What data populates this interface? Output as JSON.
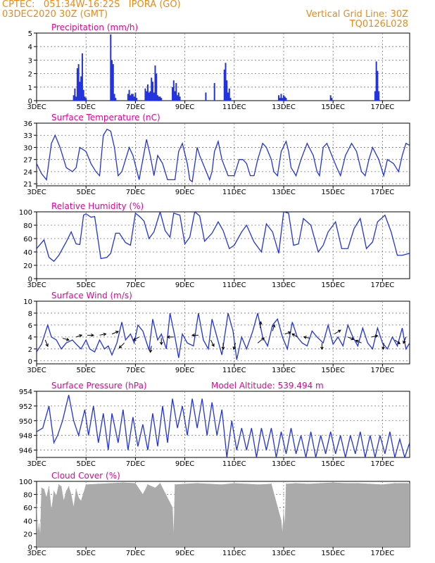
{
  "header": {
    "station_line": "CPTEC:   051:34W-16:22S   IPORA (GO)",
    "date_line": "03DEC2020 30Z (GMT)",
    "grid_note": "Vertical Grid Line: 30Z",
    "model_code": "TQ0126L028"
  },
  "colors": {
    "header": "#e88a1a",
    "title": "#e6009a",
    "line": "#2233dd",
    "cloud": "#aaaaaa",
    "arrow": "#000000"
  },
  "x_axis": {
    "tick_labels": [
      "3DEC",
      "5DEC",
      "7DEC",
      "9DEC",
      "11DEC",
      "13DEC",
      "15DEC",
      "17DEC"
    ],
    "tick_days": [
      3,
      5,
      7,
      9,
      11,
      13,
      15,
      17
    ],
    "range_days": [
      3,
      18.1
    ]
  },
  "chart_data": [
    {
      "id": "precip",
      "type": "bar",
      "title": "Precipitation (mm/h)",
      "ylim": [
        0,
        5
      ],
      "yticks": [
        0,
        1,
        2,
        3,
        4,
        5
      ],
      "grid": true,
      "x": [
        4.5,
        4.55,
        4.6,
        4.65,
        4.7,
        4.75,
        4.8,
        4.85,
        4.9,
        4.95,
        5.0,
        6.0,
        6.05,
        6.1,
        6.15,
        6.2,
        6.7,
        6.75,
        6.8,
        6.85,
        6.9,
        6.95,
        7.0,
        7.05,
        7.4,
        7.45,
        7.5,
        7.55,
        7.6,
        7.65,
        7.7,
        7.75,
        7.8,
        7.85,
        7.9,
        7.95,
        8.0,
        8.05,
        8.5,
        8.55,
        8.6,
        8.65,
        8.7,
        8.75,
        8.8,
        9.85,
        10.2,
        10.6,
        10.65,
        10.7,
        10.75,
        10.8,
        10.85,
        12.8,
        12.85,
        12.9,
        12.95,
        13.0,
        13.05,
        13.1,
        14.9,
        14.95,
        16.7,
        16.75,
        16.8,
        16.85
      ],
      "values": [
        0.4,
        0.9,
        0.3,
        2.4,
        2.7,
        1.4,
        1.8,
        3.5,
        0.8,
        0.3,
        0.2,
        4.9,
        3.0,
        2.7,
        0.5,
        0.2,
        0.5,
        0.8,
        0.4,
        0.5,
        0.5,
        0.3,
        0.6,
        0.2,
        0.9,
        0.7,
        1.2,
        0.6,
        0.7,
        1.7,
        1.4,
        0.6,
        2.6,
        2.0,
        0.4,
        0.3,
        0.3,
        0.2,
        1.0,
        1.5,
        0.7,
        1.3,
        0.4,
        0.6,
        0.3,
        0.6,
        1.3,
        2.3,
        2.8,
        1.5,
        0.6,
        0.9,
        0.2,
        0.4,
        0.2,
        0.5,
        0.2,
        0.4,
        0.3,
        0.2,
        0.4,
        0.2,
        0.7,
        2.9,
        2.2,
        0.7
      ]
    },
    {
      "id": "temp",
      "type": "line",
      "title": "Surface Temperature (nC)",
      "ylim": [
        20.5,
        36
      ],
      "yticks": [
        21,
        24,
        27,
        30,
        33,
        36
      ],
      "grid": true,
      "x": [
        3.0,
        3.2,
        3.4,
        3.6,
        3.75,
        3.95,
        4.2,
        4.45,
        4.6,
        4.75,
        5.0,
        5.2,
        5.4,
        5.55,
        5.7,
        5.85,
        6.0,
        6.15,
        6.3,
        6.45,
        6.6,
        6.75,
        6.9,
        7.15,
        7.3,
        7.45,
        7.6,
        7.75,
        7.9,
        8.1,
        8.3,
        8.6,
        8.75,
        8.9,
        9.1,
        9.2,
        9.3,
        9.5,
        9.6,
        9.8,
        10.0,
        10.1,
        10.2,
        10.35,
        10.5,
        10.75,
        11.0,
        11.2,
        11.35,
        11.5,
        11.65,
        11.8,
        11.95,
        12.15,
        12.3,
        12.5,
        12.6,
        12.75,
        12.9,
        13.1,
        13.2,
        13.3,
        13.5,
        13.7,
        13.95,
        14.2,
        14.35,
        14.45,
        14.6,
        14.75,
        14.95,
        15.15,
        15.3,
        15.5,
        15.75,
        15.95,
        16.15,
        16.3,
        16.45,
        16.6,
        16.85,
        17.05,
        17.2,
        17.45,
        17.65,
        17.8,
        17.95,
        18.1
      ],
      "values": [
        26,
        23.5,
        22,
        31,
        33,
        30,
        25,
        24,
        25,
        30,
        29,
        26,
        24,
        23,
        33,
        34.5,
        34,
        30,
        23,
        24,
        27,
        30,
        28,
        22,
        27,
        32,
        28,
        23,
        28,
        26,
        22,
        22,
        29,
        31,
        26,
        22,
        21.5,
        30,
        28,
        25,
        22,
        24,
        29,
        31.5,
        27,
        23,
        23,
        27,
        27,
        26,
        23,
        23,
        27,
        31,
        30,
        27,
        24,
        23,
        29,
        31.5,
        29,
        25,
        23,
        27,
        31,
        28,
        24,
        23,
        30,
        31,
        28,
        25,
        23,
        28,
        31,
        29,
        24,
        23,
        27,
        30,
        27,
        23,
        27,
        26,
        24,
        28,
        31,
        30.5
      ]
    },
    {
      "id": "rh",
      "type": "line",
      "title": "Relative Humidity (%)",
      "ylim": [
        0,
        100
      ],
      "yticks": [
        0,
        20,
        40,
        60,
        80,
        100
      ],
      "grid": true,
      "x": [
        3.0,
        3.3,
        3.5,
        3.7,
        3.9,
        4.2,
        4.4,
        4.6,
        4.75,
        4.9,
        5.0,
        5.2,
        5.35,
        5.6,
        5.85,
        6.0,
        6.2,
        6.35,
        6.6,
        6.8,
        7.0,
        7.2,
        7.35,
        7.55,
        7.75,
        8.0,
        8.2,
        8.4,
        8.55,
        8.8,
        9.0,
        9.2,
        9.4,
        9.6,
        9.8,
        10.1,
        10.35,
        10.55,
        10.8,
        11.0,
        11.3,
        11.5,
        11.8,
        12.1,
        12.3,
        12.55,
        12.8,
        13.0,
        13.2,
        13.4,
        13.6,
        13.8,
        14.1,
        14.4,
        14.6,
        14.8,
        15.1,
        15.35,
        15.6,
        15.85,
        16.1,
        16.35,
        16.6,
        16.8,
        17.1,
        17.35,
        17.6,
        17.8,
        18.1
      ],
      "values": [
        45,
        58,
        32,
        26,
        35,
        55,
        70,
        52,
        51,
        95,
        97,
        92,
        93,
        30,
        32,
        38,
        68,
        68,
        54,
        50,
        98,
        92,
        86,
        60,
        70,
        100,
        72,
        62,
        98,
        95,
        52,
        62,
        100,
        94,
        56,
        68,
        85,
        72,
        45,
        50,
        70,
        80,
        55,
        40,
        82,
        70,
        38,
        100,
        98,
        50,
        52,
        90,
        80,
        40,
        50,
        70,
        85,
        45,
        45,
        75,
        90,
        45,
        55,
        85,
        95,
        70,
        35,
        35,
        38
      ]
    },
    {
      "id": "wind",
      "type": "line",
      "title": "Surface Wind (m/s)",
      "ylim": [
        -0.5,
        10
      ],
      "yticks": [
        0,
        2,
        4,
        6,
        8,
        10
      ],
      "grid": true,
      "x": [
        3.0,
        3.2,
        3.45,
        3.6,
        3.8,
        4.0,
        4.2,
        4.45,
        4.6,
        4.8,
        5.0,
        5.15,
        5.35,
        5.55,
        5.75,
        5.9,
        6.05,
        6.25,
        6.45,
        6.6,
        6.8,
        6.95,
        7.1,
        7.3,
        7.55,
        7.7,
        7.9,
        8.05,
        8.25,
        8.4,
        8.6,
        8.75,
        8.9,
        9.1,
        9.35,
        9.55,
        9.75,
        9.95,
        10.1,
        10.3,
        10.5,
        10.75,
        10.95,
        11.1,
        11.3,
        11.5,
        11.75,
        11.95,
        12.15,
        12.35,
        12.55,
        12.75,
        12.95,
        13.15,
        13.35,
        13.55,
        13.75,
        13.95,
        14.15,
        14.35,
        14.6,
        14.8,
        15.0,
        15.2,
        15.4,
        15.6,
        15.8,
        16.0,
        16.2,
        16.4,
        16.6,
        16.8,
        17.0,
        17.2,
        17.4,
        17.6,
        17.8,
        17.95,
        18.1
      ],
      "values": [
        1.5,
        2.8,
        6,
        4,
        3.5,
        2,
        3,
        3.5,
        2.8,
        2,
        3.5,
        2,
        1.5,
        3.5,
        2,
        2.5,
        1,
        3,
        6.5,
        3.5,
        4.5,
        3,
        6,
        5,
        1.8,
        7,
        3.5,
        4.5,
        2,
        8,
        4,
        0.5,
        4.5,
        3,
        2.5,
        8,
        3.5,
        2,
        7,
        4,
        1,
        8,
        5,
        0.2,
        4,
        2,
        5,
        8,
        4,
        2.5,
        6,
        7,
        4,
        2,
        6.5,
        4,
        3,
        2.5,
        5,
        4,
        3,
        6,
        2.8,
        4,
        2.5,
        6,
        4,
        2.5,
        5.5,
        3,
        2,
        5.5,
        3,
        2,
        4,
        2.5,
        5.5,
        2,
        3
      ],
      "arrows": [
        {
          "day": 3.35,
          "speed": 3.5,
          "dx": 0.4,
          "dy": -1.0
        },
        {
          "day": 4.05,
          "speed": 3.8,
          "dx": 1.0,
          "dy": -0.3
        },
        {
          "day": 4.6,
          "speed": 4.0,
          "dx": 0.9,
          "dy": 0.3
        },
        {
          "day": 5.05,
          "speed": 4.3,
          "dx": 1.0,
          "dy": 0.0
        },
        {
          "day": 5.55,
          "speed": 4.3,
          "dx": 1.0,
          "dy": 0.2
        },
        {
          "day": 6.05,
          "speed": 4.5,
          "dx": 1.0,
          "dy": 0.4
        },
        {
          "day": 6.55,
          "speed": 3.0,
          "dx": -0.8,
          "dy": -0.8
        },
        {
          "day": 7.15,
          "speed": 4.0,
          "dx": -0.9,
          "dy": -0.5
        },
        {
          "day": 7.65,
          "speed": 2.5,
          "dx": -0.2,
          "dy": -1.0
        },
        {
          "day": 8.05,
          "speed": 3.8,
          "dx": 0.0,
          "dy": -1.0
        },
        {
          "day": 8.55,
          "speed": 4.0,
          "dx": -1.0,
          "dy": 0.0
        },
        {
          "day": 9.55,
          "speed": 4.3,
          "dx": -1.0,
          "dy": 0.0
        },
        {
          "day": 10.05,
          "speed": 3.5,
          "dx": 0.5,
          "dy": -1.0
        },
        {
          "day": 10.55,
          "speed": 3.0,
          "dx": 0.0,
          "dy": -1.0
        },
        {
          "day": 11.05,
          "speed": 3.0,
          "dx": -0.3,
          "dy": -1.0
        },
        {
          "day": 11.95,
          "speed": 3.0,
          "dx": 1.0,
          "dy": 0.8
        },
        {
          "day": 12.05,
          "speed": 5.5,
          "dx": 0.1,
          "dy": 1.0
        },
        {
          "day": 12.55,
          "speed": 5.0,
          "dx": 0.3,
          "dy": 1.0
        },
        {
          "day": 13.05,
          "speed": 4.5,
          "dx": 0.9,
          "dy": 0.3
        },
        {
          "day": 13.55,
          "speed": 4.0,
          "dx": -0.8,
          "dy": 0.5
        },
        {
          "day": 14.05,
          "speed": 3.8,
          "dx": -0.9,
          "dy": 0.2
        },
        {
          "day": 14.55,
          "speed": 3.0,
          "dx": 0.0,
          "dy": -1.0
        },
        {
          "day": 15.05,
          "speed": 4.5,
          "dx": 1.0,
          "dy": 0.6
        },
        {
          "day": 15.6,
          "speed": 4.0,
          "dx": 0.9,
          "dy": -0.4
        },
        {
          "day": 16.15,
          "speed": 3.0,
          "dx": -0.9,
          "dy": 0.4
        },
        {
          "day": 16.55,
          "speed": 4.0,
          "dx": 1.0,
          "dy": 0.2
        },
        {
          "day": 17.05,
          "speed": 3.0,
          "dx": -0.1,
          "dy": -1.0
        },
        {
          "day": 17.5,
          "speed": 3.5,
          "dx": 0.8,
          "dy": -0.6
        },
        {
          "day": 17.95,
          "speed": 4.0,
          "dx": -0.4,
          "dy": -1.0
        }
      ]
    },
    {
      "id": "press",
      "type": "line",
      "title": "Surface Pressure (hPa)",
      "annotation": "Model Altitude: 539.494 m",
      "ylim": [
        945,
        954
      ],
      "yticks": [
        946,
        948,
        950,
        952,
        954
      ],
      "grid": true,
      "x": [
        3.0,
        3.25,
        3.5,
        3.7,
        3.85,
        4.05,
        4.3,
        4.5,
        4.7,
        4.95,
        5.1,
        5.3,
        5.5,
        5.7,
        5.9,
        6.05,
        6.3,
        6.5,
        6.7,
        6.9,
        7.1,
        7.3,
        7.5,
        7.7,
        7.9,
        8.1,
        8.3,
        8.5,
        8.7,
        8.9,
        9.1,
        9.3,
        9.5,
        9.7,
        9.9,
        10.1,
        10.3,
        10.5,
        10.7,
        10.9,
        11.1,
        11.3,
        11.5,
        11.7,
        11.9,
        12.1,
        12.3,
        12.5,
        12.7,
        12.9,
        13.1,
        13.3,
        13.5,
        13.7,
        13.9,
        14.1,
        14.3,
        14.5,
        14.7,
        14.9,
        15.1,
        15.3,
        15.5,
        15.7,
        15.9,
        16.1,
        16.3,
        16.5,
        16.7,
        16.9,
        17.1,
        17.3,
        17.5,
        17.7,
        17.9,
        18.1
      ],
      "values": [
        948.5,
        949,
        952,
        947,
        948,
        950,
        953.5,
        950,
        948,
        951.5,
        948,
        952,
        947,
        951,
        946,
        951,
        947,
        951.5,
        946,
        950.5,
        946.5,
        949.5,
        946,
        951,
        946.5,
        952,
        947,
        953,
        949,
        952,
        948,
        953,
        949,
        953,
        948,
        952.5,
        948,
        951.5,
        945,
        950,
        946,
        949,
        946,
        949,
        945,
        949,
        946,
        949,
        945,
        948.5,
        945.5,
        949,
        945.5,
        948,
        945,
        948.5,
        945,
        948,
        945.5,
        948.5,
        945.5,
        948,
        945,
        948,
        945.5,
        948.5,
        945,
        948,
        945,
        948,
        945.5,
        948.5,
        945,
        947.5,
        945,
        947
      ]
    },
    {
      "id": "cloud",
      "type": "bar",
      "title": "Cloud Cover (%)",
      "ylim": [
        0,
        100
      ],
      "yticks": [
        0,
        20,
        40,
        60,
        80,
        100
      ],
      "grid": true,
      "x": [
        3.0,
        3.05,
        3.1,
        3.15,
        3.2,
        3.3,
        3.4,
        3.5,
        3.6,
        3.7,
        3.8,
        3.9,
        4.0,
        4.1,
        4.2,
        4.3,
        4.4,
        4.5,
        4.6,
        4.7,
        4.8,
        4.9,
        5.0,
        5.5,
        6.0,
        6.5,
        7.0,
        7.3,
        7.5,
        7.8,
        8.0,
        8.5,
        8.55,
        8.6,
        9.0,
        9.5,
        10.0,
        10.5,
        11.0,
        11.5,
        12.0,
        12.5,
        12.9,
        12.95,
        13.0,
        13.05,
        13.1,
        13.5,
        14.0,
        14.5,
        15.0,
        15.5,
        16.0,
        16.5,
        17.0,
        17.5,
        18.0,
        18.1
      ],
      "values": [
        65,
        20,
        35,
        15,
        90,
        88,
        75,
        92,
        55,
        85,
        78,
        95,
        92,
        70,
        85,
        92,
        80,
        60,
        88,
        75,
        70,
        82,
        95,
        96,
        97,
        98,
        97,
        80,
        95,
        90,
        97,
        60,
        15,
        95,
        96,
        97,
        96,
        95,
        97,
        96,
        95,
        96,
        40,
        20,
        55,
        30,
        96,
        97,
        96,
        97,
        98,
        97,
        97,
        96,
        95,
        97,
        97,
        96
      ]
    }
  ]
}
